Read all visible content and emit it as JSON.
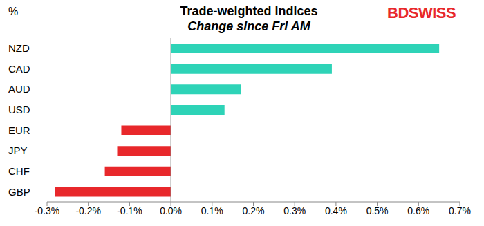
{
  "chart_data": {
    "type": "bar",
    "title": "Trade-weighted indices",
    "subtitle": "Change since Fri AM",
    "annotations": [
      "%",
      "BDSWISS"
    ],
    "orientation": "horizontal",
    "categories": [
      "NZD",
      "CAD",
      "AUD",
      "USD",
      "EUR",
      "JPY",
      "CHF",
      "GBP"
    ],
    "values": [
      0.65,
      0.39,
      0.17,
      0.13,
      -0.12,
      -0.13,
      -0.16,
      -0.28
    ],
    "colors": [
      "#2ed3b7",
      "#2ed3b7",
      "#2ed3b7",
      "#2ed3b7",
      "#e8282b",
      "#e8282b",
      "#e8282b",
      "#e8282b"
    ],
    "xlim": [
      -0.3,
      0.7
    ],
    "xticks": [
      {
        "value": -0.3,
        "label": "-0.3%"
      },
      {
        "value": -0.2,
        "label": "-0.2%"
      },
      {
        "value": -0.1,
        "label": "-0.1%"
      },
      {
        "value": 0,
        "label": "0.0%"
      },
      {
        "value": 0.1,
        "label": "0.1%"
      },
      {
        "value": 0.2,
        "label": "0.2%"
      },
      {
        "value": 0.3,
        "label": "0.3%"
      },
      {
        "value": 0.4,
        "label": "0.4%"
      },
      {
        "value": 0.5,
        "label": "0.5%"
      },
      {
        "value": 0.6,
        "label": "0.6%"
      },
      {
        "value": 0.7,
        "label": "0.7%"
      }
    ],
    "grid": false
  }
}
